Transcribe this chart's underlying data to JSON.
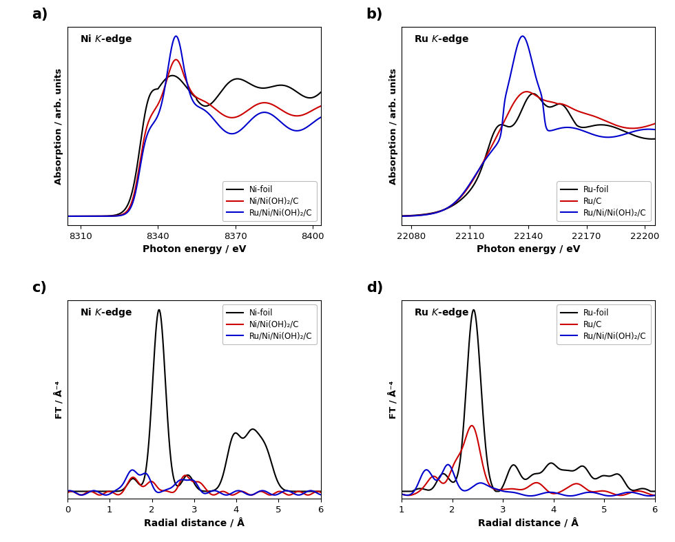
{
  "panel_a": {
    "xlabel": "Photon energy / eV",
    "ylabel": "Absorption / arb. units",
    "xlim": [
      8305,
      8403
    ],
    "xticks": [
      8310,
      8340,
      8370,
      8400
    ],
    "inset_label": "Ni $K$-edge",
    "legend": [
      "Ni-foil",
      "Ni/Ni(OH)₂/C",
      "Ru/Ni/Ni(OH)₂/C"
    ],
    "legend_loc": "lower right"
  },
  "panel_b": {
    "xlabel": "Photon energy / eV",
    "ylabel": "Absorption / arb. units",
    "xlim": [
      22075,
      22205
    ],
    "xticks": [
      22080,
      22110,
      22140,
      22170,
      22200
    ],
    "inset_label": "Ru $K$-edge",
    "legend": [
      "Ru-foil",
      "Ru/C",
      "Ru/Ni/Ni(OH)₂/C"
    ],
    "legend_loc": "lower right"
  },
  "panel_c": {
    "xlabel": "Radial distance / Å",
    "ylabel": "FT / Å⁻⁴",
    "xlim": [
      0,
      6
    ],
    "xticks": [
      0,
      1,
      2,
      3,
      4,
      5,
      6
    ],
    "inset_label": "Ni $K$-edge",
    "legend": [
      "Ni-foil",
      "Ni/Ni(OH)₂/C",
      "Ru/Ni/Ni(OH)₂/C"
    ],
    "legend_loc": "upper right"
  },
  "panel_d": {
    "xlabel": "Radial distance / Å",
    "ylabel": "FT / Å⁻⁴",
    "xlim": [
      1,
      6
    ],
    "xticks": [
      1,
      2,
      3,
      4,
      5,
      6
    ],
    "inset_label": "Ru $K$-edge",
    "legend": [
      "Ru-foil",
      "Ru/C",
      "Ru/Ni/Ni(OH)₂/C"
    ],
    "legend_loc": "upper right"
  },
  "colors": {
    "black": "#000000",
    "red": "#cc0000",
    "blue": "#0000cc"
  },
  "linewidth": 1.5,
  "panel_labels": [
    "a)",
    "b)",
    "c)",
    "d)"
  ]
}
